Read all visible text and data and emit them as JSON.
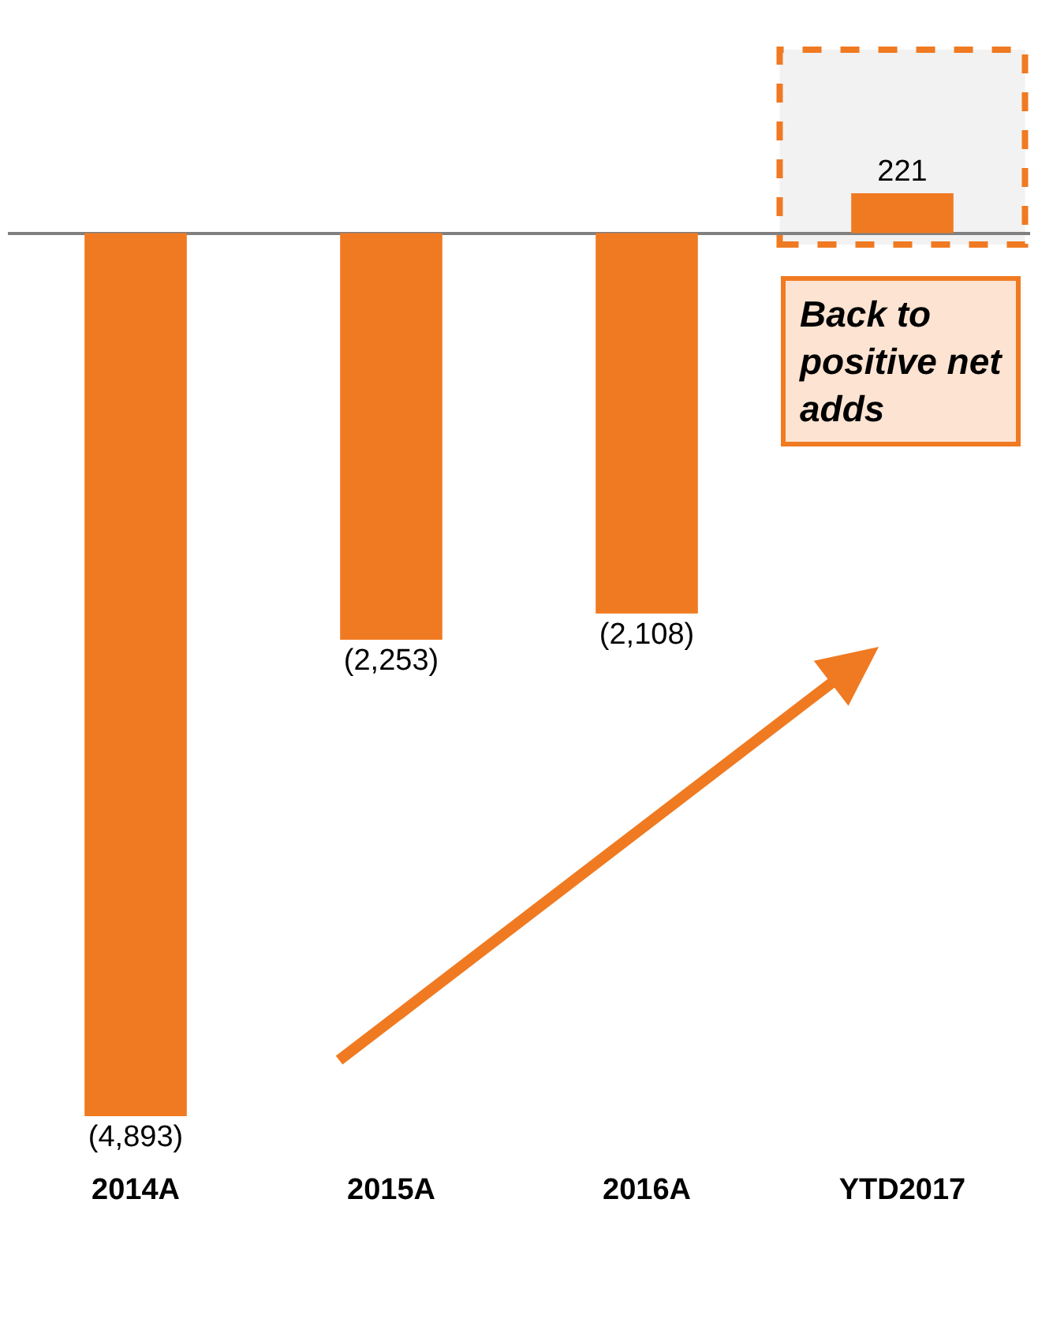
{
  "chart_data": {
    "type": "bar",
    "categories": [
      "2014A",
      "2015A",
      "2016A",
      "YTD2017"
    ],
    "values": [
      -4893,
      -2253,
      -2108,
      221
    ],
    "value_labels": [
      "(4,893)",
      "(2,253)",
      "(2,108)",
      "221"
    ],
    "color": "#f07a21",
    "tick_labels": "x",
    "grid": false,
    "legend": false,
    "annotations": [
      "Back to positive net adds"
    ]
  }
}
